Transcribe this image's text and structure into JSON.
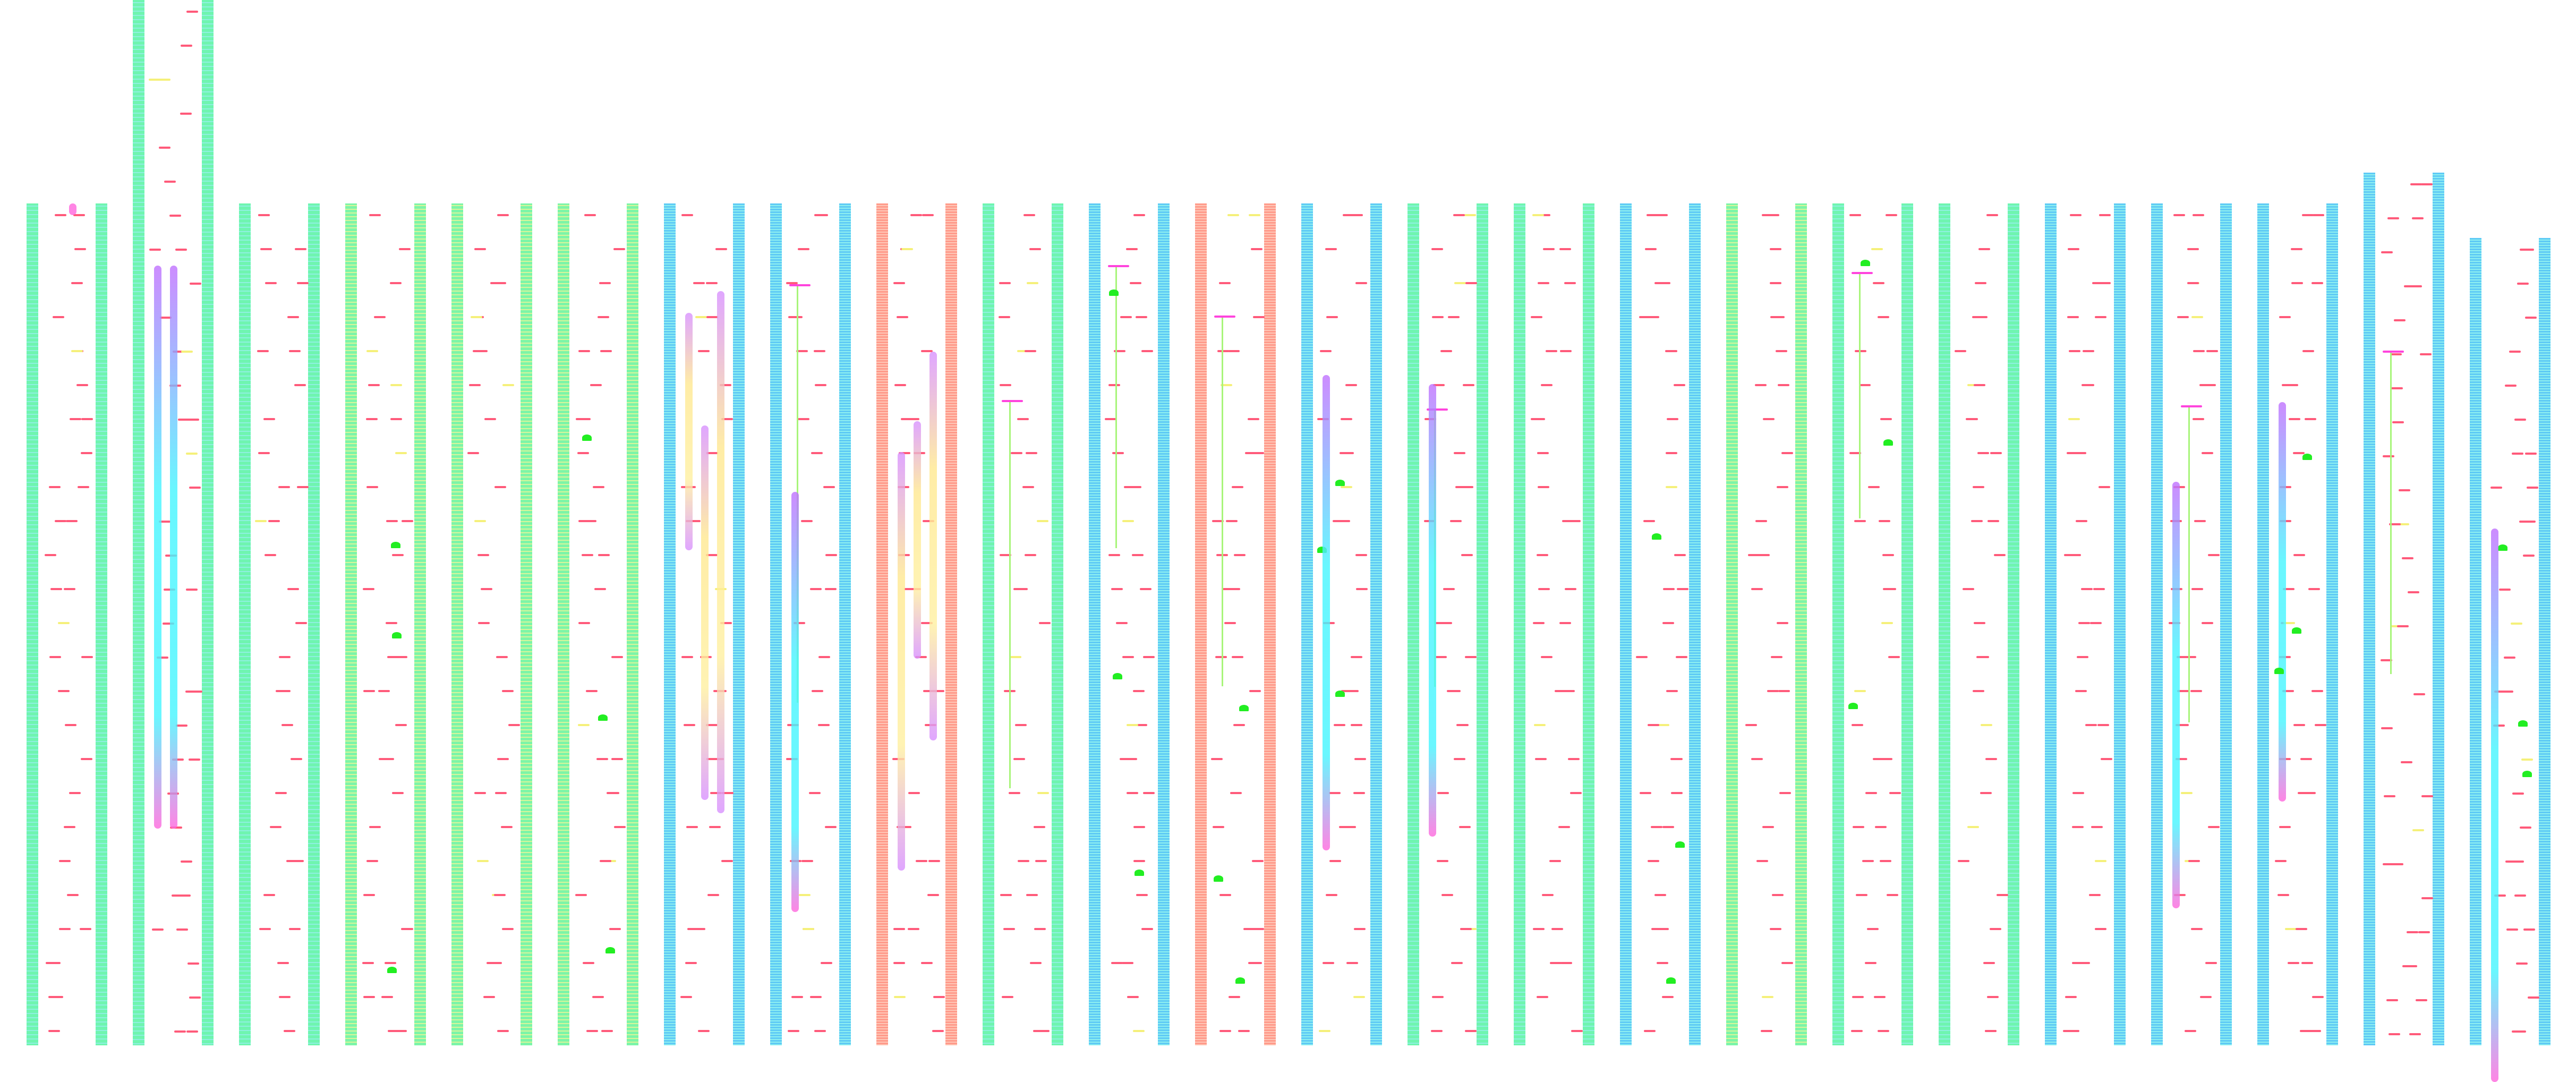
{
  "level": {
    "colors": {
      "wall": "#6ff5b0",
      "platform": "#ff5a7a",
      "ledge": "#f5f07a",
      "spring": "#ff44dd",
      "vine": "#a8f57a",
      "bush": "#22ee22",
      "slide": "#44f5ff",
      "slide_edge": "#c070ff"
    },
    "columns": [
      {
        "walls": "default",
        "features": [
          "slide-top"
        ]
      },
      {
        "walls": "default",
        "features": [
          "funnel"
        ]
      },
      {
        "walls": "default",
        "features": []
      },
      {
        "walls": "alt",
        "features": [
          "bushes"
        ]
      },
      {
        "walls": "alt",
        "features": []
      },
      {
        "walls": "alt",
        "features": [
          "bushes"
        ]
      },
      {
        "walls": "blue",
        "features": [
          "tubes"
        ]
      },
      {
        "walls": "blue",
        "features": [
          "vine",
          "slide"
        ]
      },
      {
        "walls": "red",
        "features": [
          "tubes"
        ]
      },
      {
        "walls": "default",
        "features": [
          "vine"
        ]
      },
      {
        "walls": "blue",
        "features": [
          "vine",
          "bushes"
        ]
      },
      {
        "walls": "red",
        "features": [
          "vine",
          "bushes"
        ]
      },
      {
        "walls": "blue",
        "features": [
          "bushes",
          "slide"
        ]
      },
      {
        "walls": "default",
        "features": [
          "vine",
          "slide"
        ]
      },
      {
        "walls": "default",
        "features": []
      },
      {
        "walls": "blue",
        "features": [
          "bushes"
        ]
      },
      {
        "walls": "alt",
        "features": []
      },
      {
        "walls": "default",
        "features": [
          "vine",
          "bushes"
        ]
      },
      {
        "walls": "default",
        "features": []
      },
      {
        "walls": "blue",
        "features": []
      },
      {
        "walls": "blue",
        "features": [
          "slide",
          "vine"
        ]
      },
      {
        "walls": "blue",
        "features": [
          "slide",
          "bushes"
        ]
      },
      {
        "walls": "blue",
        "features": [
          "vine"
        ]
      },
      {
        "walls": "blue",
        "features": [
          "bushes",
          "slide"
        ]
      }
    ]
  }
}
